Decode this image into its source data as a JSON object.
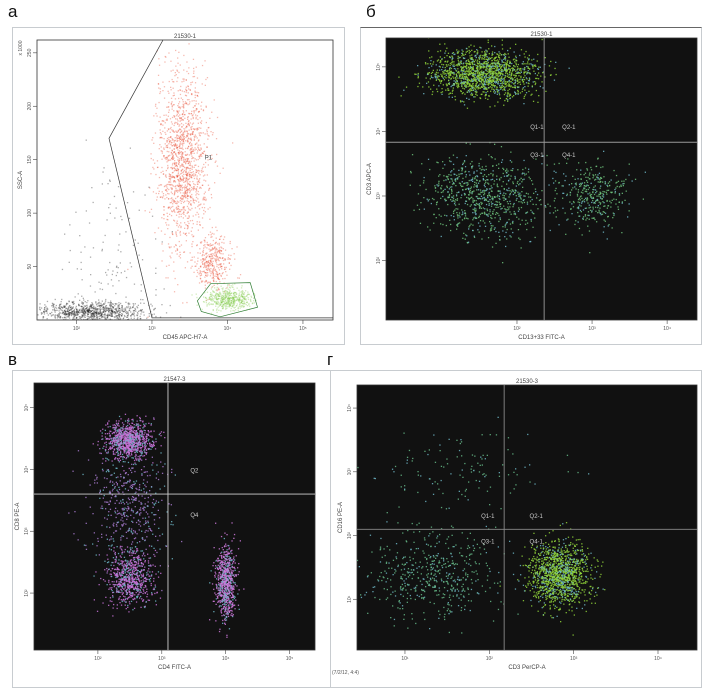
{
  "panels": [
    {
      "label": "а"
    },
    {
      "label": "б"
    },
    {
      "label": "в"
    },
    {
      "label": "г"
    }
  ],
  "chart_data": [
    {
      "type": "scatter",
      "title": "21530-1",
      "xlabel": "CD45 APC-H7-A",
      "ylabel": "SSC-A",
      "y_unit_label": "x 1000",
      "x_scale": "log",
      "xlim": [
        30,
        250000
      ],
      "y_scale": "linear",
      "ylim": [
        0,
        262
      ],
      "xticks": [
        {
          "v": 100,
          "t": "10²"
        },
        {
          "v": 1000,
          "t": "10³"
        },
        {
          "v": 10000,
          "t": "10⁴"
        },
        {
          "v": 100000,
          "t": "10⁵"
        }
      ],
      "yticks": [
        {
          "v": 50,
          "t": "50"
        },
        {
          "v": 100,
          "t": "100"
        },
        {
          "v": 150,
          "t": "150"
        },
        {
          "v": 200,
          "t": "200"
        },
        {
          "v": 250,
          "t": "250"
        }
      ],
      "background": "#ffffff",
      "gates": [
        {
          "name": "P1",
          "color": "#333333",
          "points": [
            [
              1400,
              262
            ],
            [
              270,
              170
            ],
            [
              1000,
              2
            ],
            [
              250000,
              2
            ]
          ],
          "label_at": [
            5000,
            150
          ]
        },
        {
          "name": "",
          "color": "#2e7d32",
          "points": [
            [
              4000,
              18
            ],
            [
              6000,
              34
            ],
            [
              20000,
              35
            ],
            [
              25000,
              12
            ],
            [
              8000,
              3
            ],
            [
              4500,
              8
            ]
          ]
        }
      ],
      "clusters": [
        {
          "x": 2500,
          "y": 150,
          "sx": 0.17,
          "sy": 42,
          "n": 1400,
          "color": "#e53a1c"
        },
        {
          "x": 6500,
          "y": 55,
          "sx": 0.12,
          "sy": 12,
          "n": 350,
          "color": "#e53a1c"
        },
        {
          "x": 10000,
          "y": 20,
          "sx": 0.15,
          "sy": 5,
          "n": 500,
          "color": "#7ec845"
        },
        {
          "x": 150,
          "y": 8,
          "sx": 0.35,
          "sy": 5,
          "n": 900,
          "color": "#111111"
        },
        {
          "x": 300,
          "y": 60,
          "sx": 0.35,
          "sy": 45,
          "n": 120,
          "color": "#111111"
        }
      ]
    },
    {
      "type": "scatter",
      "title": "21530-1",
      "xlabel": "CD13+33 FITC-A",
      "ylabel": "CD3 APC-A",
      "x_scale": "log",
      "xlim": [
        1.8,
        25000
      ],
      "y_scale": "log",
      "ylim": [
        12,
        280000
      ],
      "xticks": [
        {
          "v": 100,
          "t": "10²"
        },
        {
          "v": 1000,
          "t": "10³"
        },
        {
          "v": 10000,
          "t": "10⁴"
        }
      ],
      "yticks": [
        {
          "v": 100,
          "t": "10²"
        },
        {
          "v": 1000,
          "t": "10³"
        },
        {
          "v": 10000,
          "t": "10⁴"
        },
        {
          "v": 100000,
          "t": "10⁵"
        }
      ],
      "background": "#111111",
      "quadrant": {
        "x": 230,
        "y": 6800,
        "color": "#9a9a9a"
      },
      "quadrant_labels": [
        {
          "t": "Q1-1",
          "x": 150,
          "y": 11000
        },
        {
          "t": "Q2-1",
          "x": 400,
          "y": 11000
        },
        {
          "t": "Q3-1",
          "x": 150,
          "y": 4000
        },
        {
          "t": "Q4-1",
          "x": 400,
          "y": 4000
        }
      ],
      "clusters": [
        {
          "x": 35,
          "y": 80000,
          "sx": 0.35,
          "sy": 0.18,
          "n": 1500,
          "color": "#8fd43a"
        },
        {
          "x": 35,
          "y": 1000,
          "sx": 0.4,
          "sy": 0.3,
          "n": 800,
          "color": "#6cc07a"
        },
        {
          "x": 1000,
          "y": 1000,
          "sx": 0.22,
          "sy": 0.25,
          "n": 350,
          "color": "#6cc07a"
        }
      ]
    },
    {
      "type": "scatter",
      "title": "21547-3",
      "xlabel": "CD4 FITC-A",
      "ylabel": "CD8 PE-A",
      "x_scale": "log",
      "xlim": [
        10,
        250000
      ],
      "y_scale": "log",
      "ylim": [
        12,
        250000
      ],
      "xticks": [
        {
          "v": 100,
          "t": "10²"
        },
        {
          "v": 1000,
          "t": "10³"
        },
        {
          "v": 10000,
          "t": "10⁴"
        },
        {
          "v": 100000,
          "t": "10⁵"
        }
      ],
      "yticks": [
        {
          "v": 100,
          "t": "10²"
        },
        {
          "v": 1000,
          "t": "10³"
        },
        {
          "v": 10000,
          "t": "10⁴"
        },
        {
          "v": 100000,
          "t": "10⁵"
        }
      ],
      "background": "#111111",
      "quadrant": {
        "x": 1250,
        "y": 4000,
        "color": "#cfcfcf"
      },
      "quadrant_labels": [
        {
          "t": "Q2",
          "x": 2800,
          "y": 9000
        },
        {
          "t": "Q4",
          "x": 2800,
          "y": 1700
        }
      ],
      "clusters": [
        {
          "x": 300,
          "y": 30000,
          "sx": 0.18,
          "sy": 0.15,
          "n": 900,
          "color": "#c872d8"
        },
        {
          "x": 300,
          "y": 180,
          "sx": 0.18,
          "sy": 0.22,
          "n": 700,
          "color": "#c872d8"
        },
        {
          "x": 10000,
          "y": 150,
          "sx": 0.08,
          "sy": 0.3,
          "n": 700,
          "color": "#d07ade"
        },
        {
          "x": 300,
          "y": 2500,
          "sx": 0.3,
          "sy": 0.5,
          "n": 500,
          "color": "#a87ad0"
        }
      ]
    },
    {
      "type": "scatter",
      "title": "21530-3",
      "xlabel": "CD3 PerCP-A",
      "ylabel": "CD16 PE-A",
      "x_scale": "log",
      "xlim": [
        2.7,
        29000
      ],
      "y_scale": "log",
      "ylim": [
        1.6,
        23000
      ],
      "xticks": [
        {
          "v": 10,
          "t": "10¹"
        },
        {
          "v": 100,
          "t": "10²"
        },
        {
          "v": 1000,
          "t": "10³"
        },
        {
          "v": 10000,
          "t": "10⁴"
        }
      ],
      "yticks": [
        {
          "v": 10,
          "t": "10¹"
        },
        {
          "v": 100,
          "t": "10²"
        },
        {
          "v": 1000,
          "t": "10³"
        },
        {
          "v": 10000,
          "t": "10⁴"
        }
      ],
      "background": "#111111",
      "quadrant": {
        "x": 150,
        "y": 125,
        "color": "#8a8a8a"
      },
      "quadrant_labels": [
        {
          "t": "Q1-1",
          "x": 80,
          "y": 190
        },
        {
          "t": "Q2-1",
          "x": 300,
          "y": 190
        },
        {
          "t": "Q3-1",
          "x": 80,
          "y": 75
        },
        {
          "t": "Q4-1",
          "x": 300,
          "y": 75
        }
      ],
      "corner_label": "(7/2/12, 4:4)",
      "clusters": [
        {
          "x": 650,
          "y": 25,
          "sx": 0.18,
          "sy": 0.25,
          "n": 1300,
          "color": "#8fd43a"
        },
        {
          "x": 22,
          "y": 25,
          "sx": 0.35,
          "sy": 0.35,
          "n": 500,
          "color": "#66bb88"
        },
        {
          "x": 60,
          "y": 1000,
          "sx": 0.5,
          "sy": 0.3,
          "n": 120,
          "color": "#66bb88"
        }
      ]
    }
  ]
}
